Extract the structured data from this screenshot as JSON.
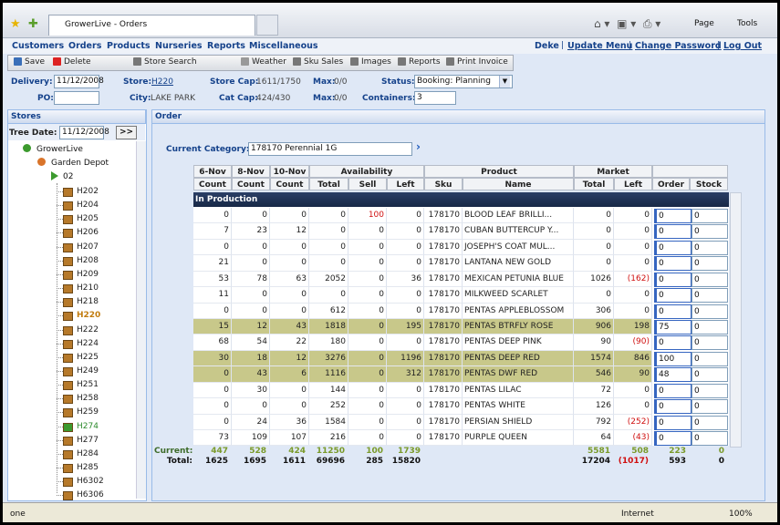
{
  "browser": {
    "tab_title": "GrowerLive - Orders",
    "page_menu": "Page",
    "tools_menu": "Tools",
    "status_text": "one",
    "zone": "Internet",
    "zoom": "100%"
  },
  "menu": {
    "items": [
      "Customers",
      "Orders",
      "Products",
      "Nurseries",
      "Reports",
      "Miscellaneous"
    ],
    "user": "Deke",
    "links": [
      "Update Menu",
      "Change Password",
      "Log Out"
    ]
  },
  "toolbar": [
    "Save",
    "Delete",
    "Store Search",
    "Weather",
    "Sku Sales",
    "Images",
    "Reports",
    "Print Invoice"
  ],
  "form": {
    "delivery_label": "Delivery:",
    "delivery": "11/12/2008",
    "store_label": "Store:",
    "store": "H220",
    "store_cap_label": "Store Cap:",
    "store_cap": "1611/1750",
    "max_label": "Max:",
    "max_store": "0/0",
    "status_label": "Status:",
    "status": "Booking: Planning",
    "po_label": "PO:",
    "city_label": "City:",
    "city": "LAKE PARK",
    "cat_cap_label": "Cat Cap:",
    "cat_cap": "424/430",
    "max_cat": "0/0",
    "containers_label": "Containers:",
    "containers": "3"
  },
  "stores_panel": {
    "title": "Stores",
    "tree_date_label": "Tree Date:",
    "tree_date": "11/12/2008",
    "go_button": ">>",
    "tree": {
      "root": "GrowerLive",
      "group": "Garden Depot",
      "region": "02",
      "stores": [
        {
          "label": "H202"
        },
        {
          "label": "H204"
        },
        {
          "label": "H205"
        },
        {
          "label": "H206"
        },
        {
          "label": "H207"
        },
        {
          "label": "H208"
        },
        {
          "label": "H209"
        },
        {
          "label": "H210"
        },
        {
          "label": "H218"
        },
        {
          "label": "H220",
          "status": "selected"
        },
        {
          "label": "H222"
        },
        {
          "label": "H224"
        },
        {
          "label": "H225"
        },
        {
          "label": "H249"
        },
        {
          "label": "H251"
        },
        {
          "label": "H258"
        },
        {
          "label": "H259"
        },
        {
          "label": "H274",
          "status": "done"
        },
        {
          "label": "H277"
        },
        {
          "label": "H284"
        },
        {
          "label": "H285"
        },
        {
          "label": "H6302"
        },
        {
          "label": "H6306"
        }
      ]
    }
  },
  "order_panel": {
    "title": "Order",
    "category_label": "Current Category:",
    "category": "178170 Perennial 1G",
    "group_headers": [
      "6-Nov",
      "8-Nov",
      "10-Nov",
      "Availability",
      "Product",
      "Market"
    ],
    "columns": [
      "Count",
      "Count",
      "Count",
      "Total",
      "Sell",
      "Left",
      "Sku",
      "Name",
      "Total",
      "Left",
      "Order",
      "Stock"
    ],
    "section": "In Production",
    "rows": [
      {
        "cells": [
          "0",
          "0",
          "0",
          "0",
          "100",
          "0",
          "178170",
          "BLOOD LEAF BRILLI...",
          "0",
          "0",
          "0",
          "0"
        ]
      },
      {
        "cells": [
          "7",
          "23",
          "12",
          "0",
          "0",
          "0",
          "178170",
          "CUBAN BUTTERCUP Y...",
          "0",
          "0",
          "0",
          "0"
        ]
      },
      {
        "cells": [
          "0",
          "0",
          "0",
          "0",
          "0",
          "0",
          "178170",
          "JOSEPH'S COAT MUL...",
          "0",
          "0",
          "0",
          "0"
        ]
      },
      {
        "cells": [
          "21",
          "0",
          "0",
          "0",
          "0",
          "0",
          "178170",
          "LANTANA NEW GOLD",
          "0",
          "0",
          "0",
          "0"
        ]
      },
      {
        "cells": [
          "53",
          "78",
          "63",
          "2052",
          "0",
          "36",
          "178170",
          "MEXICAN PETUNIA BLUE",
          "1026",
          "(162)",
          "0",
          "0"
        ]
      },
      {
        "cells": [
          "11",
          "0",
          "0",
          "0",
          "0",
          "0",
          "178170",
          "MILKWEED SCARLET",
          "0",
          "0",
          "0",
          "0"
        ]
      },
      {
        "cells": [
          "0",
          "0",
          "0",
          "612",
          "0",
          "0",
          "178170",
          "PENTAS APPLEBLOSSOM",
          "306",
          "0",
          "0",
          "0"
        ]
      },
      {
        "cells": [
          "15",
          "12",
          "43",
          "1818",
          "0",
          "195",
          "178170",
          "PENTAS BTRFLY ROSE",
          "906",
          "198",
          "75",
          "0"
        ],
        "highlighted": true
      },
      {
        "cells": [
          "68",
          "54",
          "22",
          "180",
          "0",
          "0",
          "178170",
          "PENTAS DEEP PINK",
          "90",
          "(90)",
          "0",
          "0"
        ]
      },
      {
        "cells": [
          "30",
          "18",
          "12",
          "3276",
          "0",
          "1196",
          "178170",
          "PENTAS DEEP RED",
          "1574",
          "846",
          "100",
          "0"
        ],
        "highlighted": true
      },
      {
        "cells": [
          "0",
          "43",
          "6",
          "1116",
          "0",
          "312",
          "178170",
          "PENTAS DWF RED",
          "546",
          "90",
          "48",
          "0"
        ],
        "highlighted": true
      },
      {
        "cells": [
          "0",
          "30",
          "0",
          "144",
          "0",
          "0",
          "178170",
          "PENTAS LILAC",
          "72",
          "0",
          "0",
          "0"
        ]
      },
      {
        "cells": [
          "0",
          "0",
          "0",
          "252",
          "0",
          "0",
          "178170",
          "PENTAS WHITE",
          "126",
          "0",
          "0",
          "0"
        ]
      },
      {
        "cells": [
          "0",
          "24",
          "36",
          "1584",
          "0",
          "0",
          "178170",
          "PERSIAN SHIELD",
          "792",
          "(252)",
          "0",
          "0"
        ]
      },
      {
        "cells": [
          "73",
          "109",
          "107",
          "216",
          "0",
          "0",
          "178170",
          "PURPLE QUEEN",
          "64",
          "(43)",
          "0",
          "0"
        ]
      }
    ],
    "current_label": "Current:",
    "current": [
      "447",
      "528",
      "424",
      "11250",
      "100",
      "1739",
      "5581",
      "508",
      "223",
      "0"
    ],
    "total_label": "Total:",
    "totals": [
      "1625",
      "1695",
      "1611",
      "69696",
      "285",
      "15820",
      "17204",
      "(1017)",
      "593",
      "0"
    ]
  }
}
